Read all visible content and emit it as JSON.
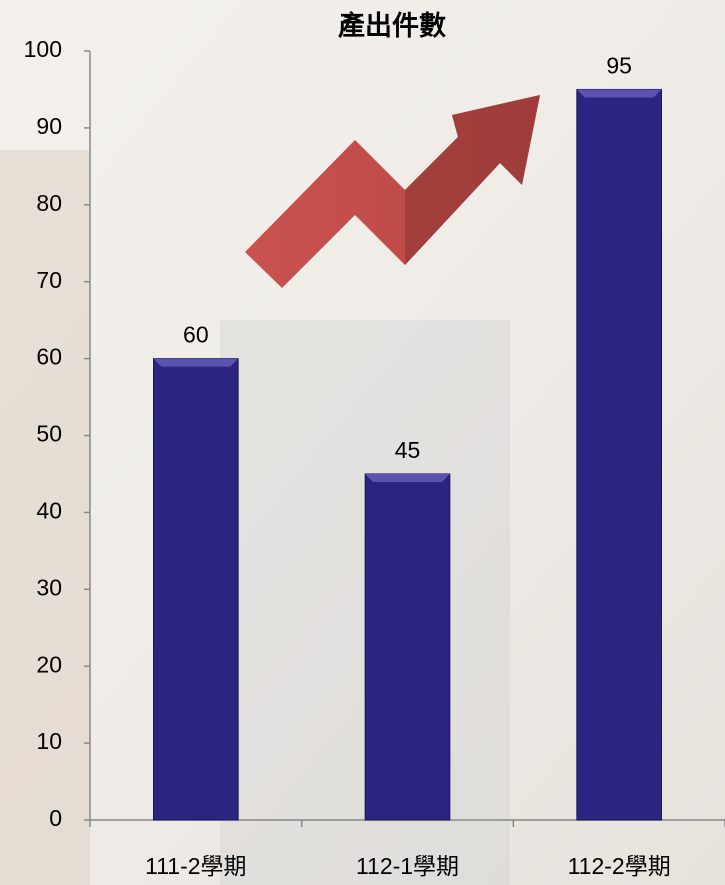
{
  "chart_data": {
    "type": "bar",
    "title": "產出件數",
    "categories": [
      "111-2學期",
      "112-1學期",
      "112-2學期"
    ],
    "values": [
      60,
      45,
      95
    ],
    "color": "#2b2580",
    "ylim": [
      0,
      100
    ],
    "yticks": [
      0,
      10,
      20,
      30,
      40,
      50,
      60,
      70,
      80,
      90,
      100
    ],
    "grid": false
  }
}
